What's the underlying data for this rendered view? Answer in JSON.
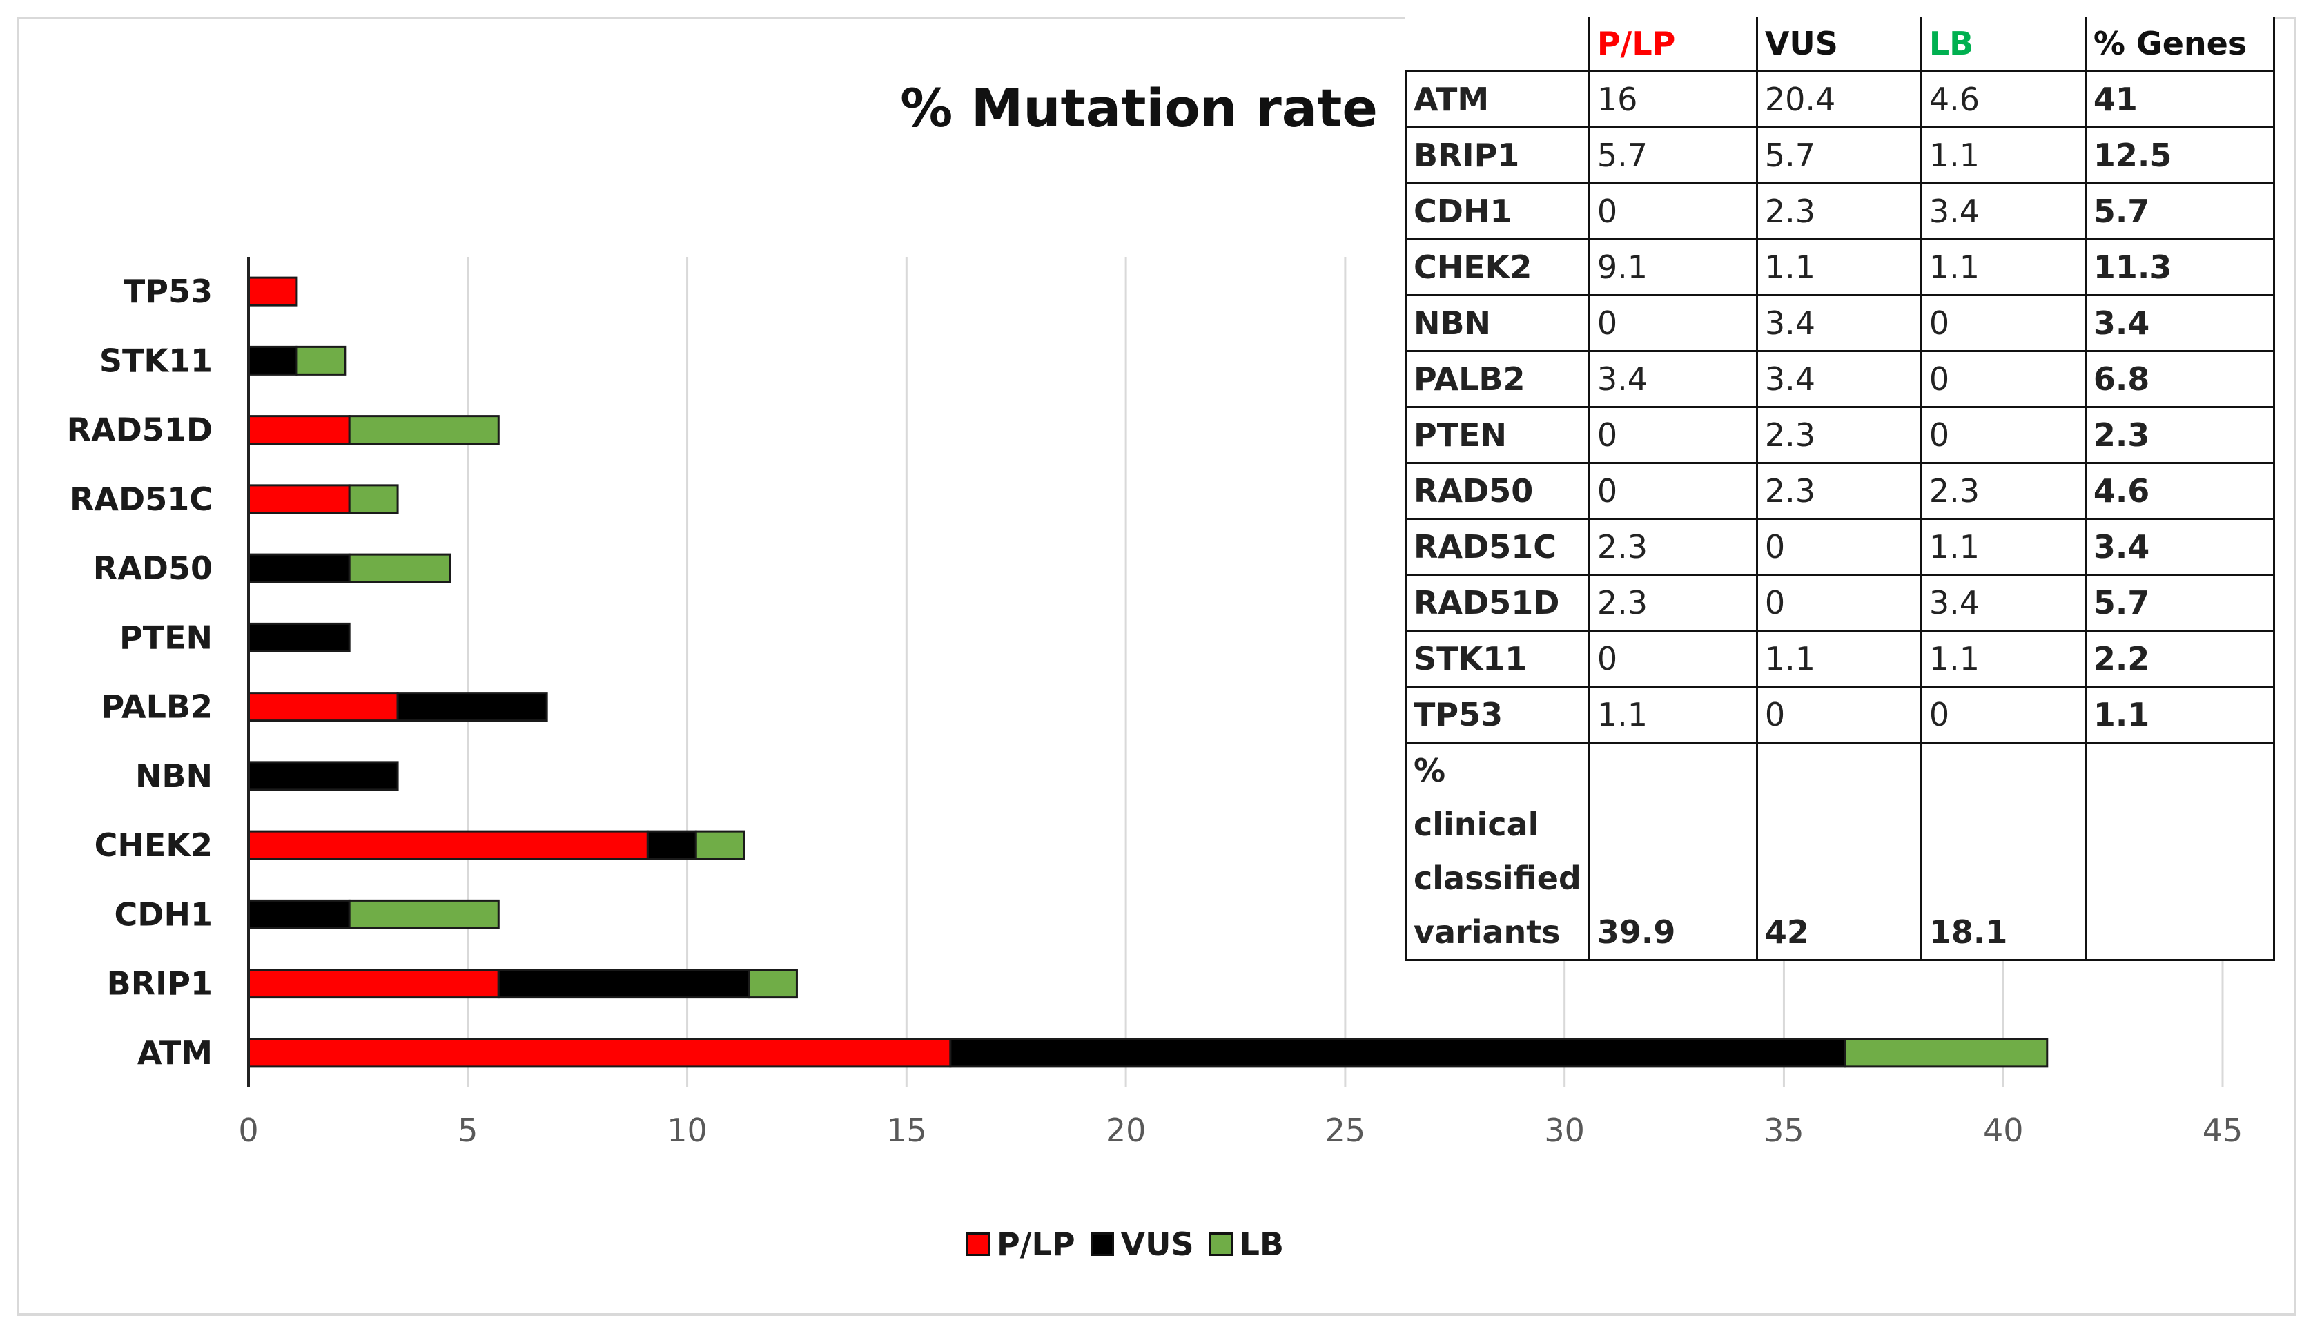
{
  "chart_data": {
    "type": "bar",
    "orientation": "horizontal",
    "stacked": true,
    "title": "% Mutation rate",
    "categories": [
      "TP53",
      "STK11",
      "RAD51D",
      "RAD51C",
      "RAD50",
      "PTEN",
      "PALB2",
      "NBN",
      "CHEK2",
      "CDH1",
      "BRIP1",
      "ATM"
    ],
    "series": [
      {
        "name": "P/LP",
        "color": "#ff0000",
        "values": [
          1.1,
          0,
          2.3,
          2.3,
          0,
          0,
          3.4,
          0,
          9.1,
          0,
          5.7,
          16
        ]
      },
      {
        "name": "VUS",
        "color": "#000000",
        "values": [
          0,
          1.1,
          0,
          0,
          2.3,
          2.3,
          3.4,
          3.4,
          1.1,
          2.3,
          5.7,
          20.4
        ]
      },
      {
        "name": "LB",
        "color": "#70ad47",
        "values": [
          0,
          1.1,
          3.4,
          1.1,
          2.3,
          0,
          0,
          0,
          1.1,
          3.4,
          1.1,
          4.6
        ]
      }
    ],
    "xlim": [
      0,
      45
    ],
    "xticks": [
      0,
      5,
      10,
      15,
      20,
      25,
      30,
      35,
      40,
      45
    ],
    "grid": "vertical",
    "legend": "bottom"
  },
  "table": {
    "headers": {
      "plp": "P/LP",
      "vus": "VUS",
      "lb": "LB",
      "genes": "% Genes"
    },
    "rows": [
      {
        "gene": "ATM",
        "plp": "16",
        "vus": "20.4",
        "lb": "4.6",
        "total": "41"
      },
      {
        "gene": "BRIP1",
        "plp": "5.7",
        "vus": "5.7",
        "lb": "1.1",
        "total": "12.5"
      },
      {
        "gene": "CDH1",
        "plp": "0",
        "vus": "2.3",
        "lb": "3.4",
        "total": "5.7"
      },
      {
        "gene": "CHEK2",
        "plp": "9.1",
        "vus": "1.1",
        "lb": "1.1",
        "total": "11.3"
      },
      {
        "gene": "NBN",
        "plp": "0",
        "vus": "3.4",
        "lb": "0",
        "total": "3.4"
      },
      {
        "gene": "PALB2",
        "plp": "3.4",
        "vus": "3.4",
        "lb": "0",
        "total": "6.8"
      },
      {
        "gene": "PTEN",
        "plp": "0",
        "vus": "2.3",
        "lb": "0",
        "total": "2.3"
      },
      {
        "gene": "RAD50",
        "plp": "0",
        "vus": "2.3",
        "lb": "2.3",
        "total": "4.6"
      },
      {
        "gene": "RAD51C",
        "plp": "2.3",
        "vus": "0",
        "lb": "1.1",
        "total": "3.4"
      },
      {
        "gene": "RAD51D",
        "plp": "2.3",
        "vus": "0",
        "lb": "3.4",
        "total": "5.7"
      },
      {
        "gene": "STK11",
        "plp": "0",
        "vus": "1.1",
        "lb": "1.1",
        "total": "2.2"
      },
      {
        "gene": "TP53",
        "plp": "1.1",
        "vus": "0",
        "lb": "0",
        "total": "1.1"
      }
    ],
    "clinical": {
      "label": "% clinical classified variants",
      "plp": "39.9",
      "vus": "42",
      "lb": "18.1"
    }
  }
}
